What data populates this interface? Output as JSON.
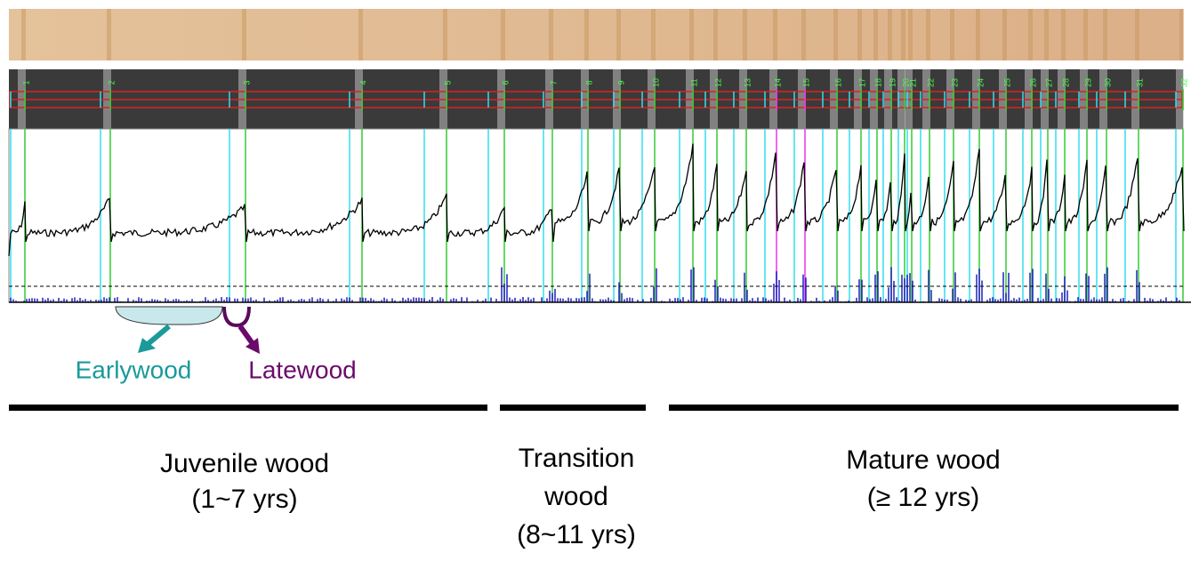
{
  "ring_labels": [
    "1",
    "2",
    "3",
    "4",
    "5",
    "6",
    "7",
    "8",
    "9",
    "10",
    "11",
    "12",
    "13",
    "14",
    "15",
    "16",
    "17",
    "18",
    "19",
    "20",
    "21",
    "22",
    "23",
    "24",
    "25",
    "26",
    "27",
    "28",
    "29",
    "30",
    "31",
    "32"
  ],
  "legend": {
    "earlywood": "Earlywood",
    "latewood": "Latewood"
  },
  "sections": [
    {
      "name": "Juvenile wood",
      "range": "(1~7 yrs)"
    },
    {
      "name": "Transition",
      "name2": "wood",
      "range": "(8~11 yrs)"
    },
    {
      "name": "Mature wood",
      "range": "(≥ 12 yrs)"
    }
  ]
}
